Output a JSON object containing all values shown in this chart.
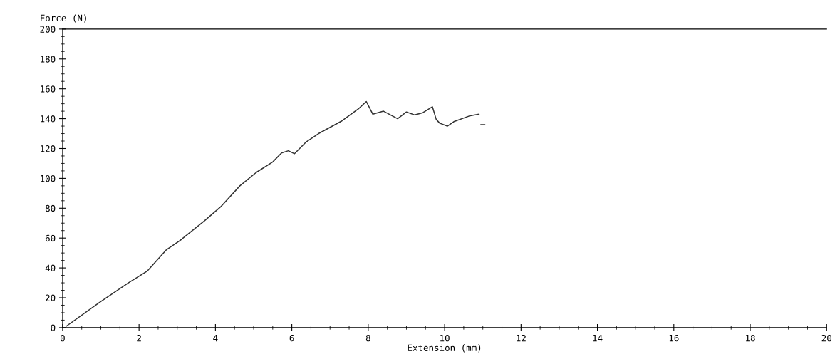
{
  "chart_data": {
    "type": "line",
    "xlabel": "Extension (mm)",
    "ylabel": "Force (N)",
    "xlim": [
      0,
      20
    ],
    "xticks": [
      0,
      2,
      4,
      6,
      8,
      10,
      12,
      14,
      16,
      18,
      20
    ],
    "ylim": [
      0,
      200
    ],
    "yticks": [
      0,
      20,
      40,
      60,
      80,
      100,
      120,
      140,
      160,
      180,
      200
    ],
    "grid": false,
    "legend": false,
    "marker": "none",
    "line_style": "solid",
    "series": [
      {
        "color": "#333333",
        "x": [
          0.1,
          0.97,
          1.72,
          2.22,
          2.71,
          3.08,
          3.71,
          4.14,
          4.64,
          5.07,
          5.5,
          5.73,
          5.91,
          6.07,
          6.38,
          6.7,
          7.31,
          7.74,
          7.95,
          8.12,
          8.4,
          8.77,
          9.0,
          9.22,
          9.43,
          9.68,
          9.78,
          9.87,
          10.07,
          10.24,
          10.67,
          10.9,
          null,
          10.95,
          11.05
        ],
        "values": [
          1,
          17,
          30,
          38,
          52,
          58.5,
          71.5,
          81,
          95,
          104,
          111,
          117,
          118.5,
          116.5,
          124.5,
          130,
          138.5,
          146.5,
          151.5,
          143,
          145,
          140,
          144.5,
          142.5,
          144,
          148,
          139.5,
          137,
          135,
          138,
          142,
          143,
          null,
          136,
          136
        ]
      }
    ]
  }
}
